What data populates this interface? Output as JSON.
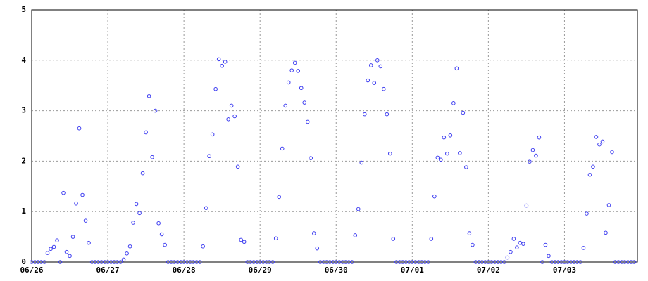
{
  "chart_data": {
    "type": "scatter",
    "color": "#3c3cf0",
    "grid": true,
    "xlim": [
      0,
      191
    ],
    "ylim": [
      0,
      5
    ],
    "yticks": [
      0,
      1,
      2,
      3,
      4,
      5
    ],
    "xticks": [
      {
        "value": 0,
        "label": "06/26"
      },
      {
        "value": 24,
        "label": "06/27"
      },
      {
        "value": 48,
        "label": "06/28"
      },
      {
        "value": 72,
        "label": "06/29"
      },
      {
        "value": 96,
        "label": "06/30"
      },
      {
        "value": 120,
        "label": "07/01"
      },
      {
        "value": 144,
        "label": "07/02"
      },
      {
        "value": 168,
        "label": "07/03"
      }
    ],
    "x": [
      0,
      1,
      2,
      3,
      4,
      5,
      6,
      7,
      8,
      9,
      10,
      11,
      12,
      13,
      14,
      15,
      16,
      17,
      18,
      19,
      20,
      21,
      22,
      23,
      24,
      25,
      26,
      27,
      28,
      29,
      30,
      31,
      32,
      33,
      34,
      35,
      36,
      37,
      38,
      39,
      40,
      41,
      42,
      43,
      44,
      45,
      46,
      47,
      48,
      49,
      50,
      51,
      52,
      53,
      54,
      55,
      56,
      57,
      58,
      59,
      60,
      61,
      62,
      63,
      64,
      65,
      66,
      67,
      68,
      69,
      70,
      71,
      72,
      73,
      74,
      75,
      76,
      77,
      78,
      79,
      80,
      81,
      82,
      83,
      84,
      85,
      86,
      87,
      88,
      89,
      90,
      91,
      92,
      93,
      94,
      95,
      96,
      97,
      98,
      99,
      100,
      101,
      102,
      103,
      104,
      105,
      106,
      107,
      108,
      109,
      110,
      111,
      112,
      113,
      114,
      115,
      116,
      117,
      118,
      119,
      120,
      121,
      122,
      123,
      124,
      125,
      126,
      127,
      128,
      129,
      130,
      131,
      132,
      133,
      134,
      135,
      136,
      137,
      138,
      139,
      140,
      141,
      142,
      143,
      144,
      145,
      146,
      147,
      148,
      149,
      150,
      151,
      152,
      153,
      154,
      155,
      156,
      157,
      158,
      159,
      160,
      161,
      162,
      163,
      164,
      165,
      166,
      167,
      168,
      169,
      170,
      171,
      172,
      173,
      174,
      175,
      176,
      177,
      178,
      179,
      180,
      181,
      182,
      183,
      184,
      185,
      186,
      187,
      188,
      189,
      190
    ],
    "values": [
      0,
      0,
      0,
      0,
      0,
      0.18,
      0.26,
      0.3,
      0.43,
      0,
      1.37,
      0.2,
      0.12,
      0.5,
      1.16,
      2.65,
      1.33,
      0.82,
      0.38,
      0,
      0,
      0,
      0,
      0,
      0,
      0,
      0,
      0,
      0,
      0.05,
      0.17,
      0.31,
      0.78,
      1.15,
      0.97,
      1.76,
      2.57,
      3.29,
      2.08,
      3.0,
      0.77,
      0.55,
      0.34,
      0,
      0,
      0,
      0,
      0,
      0,
      0,
      0,
      0,
      0,
      0,
      0.31,
      1.07,
      2.1,
      2.53,
      3.43,
      4.02,
      3.89,
      3.97,
      2.83,
      3.1,
      2.89,
      1.89,
      0.44,
      0.4,
      0,
      0,
      0,
      0,
      0,
      0,
      0,
      0,
      0,
      0.47,
      1.29,
      2.25,
      3.1,
      3.56,
      3.8,
      3.95,
      3.79,
      3.45,
      3.16,
      2.78,
      2.06,
      0.57,
      0.27,
      0,
      0,
      0,
      0,
      0,
      0,
      0,
      0,
      0,
      0,
      0,
      0.53,
      1.05,
      1.97,
      2.93,
      3.6,
      3.9,
      3.55,
      4.0,
      3.88,
      3.43,
      2.93,
      2.15,
      0.46,
      0,
      0,
      0,
      0,
      0,
      0,
      0,
      0,
      0,
      0,
      0,
      0.46,
      1.3,
      2.07,
      2.03,
      2.47,
      2.15,
      2.51,
      3.15,
      3.84,
      2.16,
      2.96,
      1.88,
      0.57,
      0.34,
      0,
      0,
      0,
      0,
      0,
      0,
      0,
      0,
      0,
      0,
      0.09,
      0.2,
      0.46,
      0.29,
      0.38,
      0.36,
      1.12,
      1.99,
      2.22,
      2.11,
      2.47,
      0,
      0.34,
      0.12,
      0,
      0,
      0,
      0,
      0,
      0,
      0,
      0,
      0,
      0,
      0.28,
      0.96,
      1.73,
      1.89,
      2.48,
      2.33,
      2.39,
      0.58,
      1.13,
      2.18,
      0,
      0,
      0,
      0,
      0,
      0,
      0
    ]
  }
}
